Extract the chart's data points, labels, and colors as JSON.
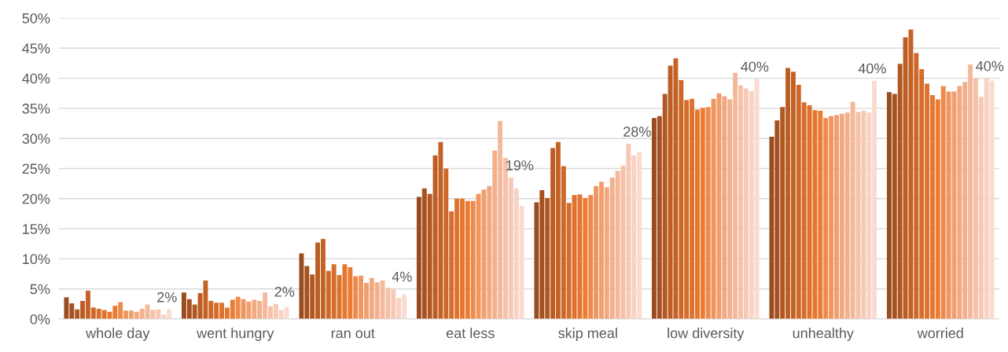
{
  "chart_data": {
    "type": "bar",
    "categories": [
      "whole day",
      "went hungry",
      "ran out",
      "eat less",
      "skip meal",
      "low diversity",
      "unhealthy",
      "worried"
    ],
    "series": [
      {
        "color": "#9a4b1f",
        "values": [
          3.6,
          4.4,
          10.9,
          20.3,
          19.4,
          33.4,
          30.3,
          37.7
        ]
      },
      {
        "color": "#a6511f",
        "values": [
          2.6,
          3.3,
          8.8,
          21.7,
          21.4,
          33.7,
          33.0,
          37.4
        ]
      },
      {
        "color": "#b15721",
        "values": [
          1.6,
          2.4,
          7.4,
          20.8,
          20.1,
          37.4,
          35.2,
          42.4
        ]
      },
      {
        "color": "#bc5d24",
        "values": [
          3.0,
          4.3,
          12.7,
          27.2,
          28.4,
          42.1,
          41.7,
          46.8
        ]
      },
      {
        "color": "#c46226",
        "values": [
          4.7,
          6.4,
          13.3,
          29.4,
          29.4,
          43.3,
          41.1,
          48.1
        ]
      },
      {
        "color": "#cd6828",
        "values": [
          1.9,
          3.0,
          8.0,
          25.0,
          25.4,
          39.7,
          38.9,
          44.2
        ]
      },
      {
        "color": "#d66e2b",
        "values": [
          1.7,
          2.7,
          9.1,
          17.9,
          19.3,
          36.4,
          36.0,
          41.5
        ]
      },
      {
        "color": "#de722d",
        "values": [
          1.5,
          2.7,
          7.3,
          20.0,
          20.6,
          36.6,
          35.5,
          39.1
        ]
      },
      {
        "color": "#e5772f",
        "values": [
          1.2,
          1.9,
          9.1,
          20.0,
          20.7,
          34.8,
          34.7,
          37.2
        ]
      },
      {
        "color": "#ec7c31",
        "values": [
          2.2,
          3.2,
          8.6,
          19.6,
          20.1,
          35.1,
          34.6,
          36.5
        ]
      },
      {
        "color": "#ee8a4c",
        "values": [
          2.8,
          3.7,
          7.1,
          19.6,
          20.6,
          35.2,
          33.4,
          38.7
        ]
      },
      {
        "color": "#ef9660",
        "values": [
          1.4,
          3.3,
          7.2,
          20.8,
          22.1,
          36.6,
          33.7,
          37.8
        ]
      },
      {
        "color": "#f09f6f",
        "values": [
          1.4,
          2.9,
          6.0,
          21.5,
          22.8,
          37.5,
          33.9,
          37.8
        ]
      },
      {
        "color": "#f2a880",
        "values": [
          1.2,
          3.2,
          6.8,
          22.1,
          21.9,
          37.0,
          34.1,
          38.7
        ]
      },
      {
        "color": "#f3b08d",
        "values": [
          1.7,
          3.0,
          6.1,
          28.0,
          23.5,
          36.5,
          34.3,
          39.4
        ]
      },
      {
        "color": "#f4b99b",
        "values": [
          2.4,
          4.4,
          6.4,
          32.9,
          24.6,
          40.9,
          36.1,
          42.3
        ]
      },
      {
        "color": "#f6c1a8",
        "values": [
          1.5,
          2.1,
          5.2,
          26.8,
          25.5,
          38.8,
          34.4,
          40.0
        ]
      },
      {
        "color": "#f7c9b5",
        "values": [
          1.6,
          2.5,
          5.0,
          23.5,
          29.1,
          38.3,
          34.6,
          36.9
        ]
      },
      {
        "color": "#f8d2c2",
        "values": [
          0.7,
          1.5,
          3.5,
          21.7,
          27.2,
          37.9,
          34.3,
          40.0
        ]
      },
      {
        "color": "#fadbd0",
        "values": [
          1.6,
          2.0,
          4.1,
          18.8,
          27.7,
          39.9,
          39.6,
          39.6
        ],
        "value_labels": [
          "2%",
          "2%",
          "4%",
          "19%",
          "28%",
          "40%",
          "40%",
          "40%"
        ]
      }
    ],
    "ylim": [
      0,
      50
    ],
    "yticks": [
      {
        "value": 0,
        "label": "0%"
      },
      {
        "value": 5,
        "label": "5%"
      },
      {
        "value": 10,
        "label": "10%"
      },
      {
        "value": 15,
        "label": "15%"
      },
      {
        "value": 20,
        "label": "20%"
      },
      {
        "value": 25,
        "label": "25%"
      },
      {
        "value": 30,
        "label": "30%"
      },
      {
        "value": 35,
        "label": "35%"
      },
      {
        "value": 40,
        "label": "40%"
      },
      {
        "value": 45,
        "label": "45%"
      },
      {
        "value": 50,
        "label": "50%"
      }
    ],
    "grid": "y"
  }
}
